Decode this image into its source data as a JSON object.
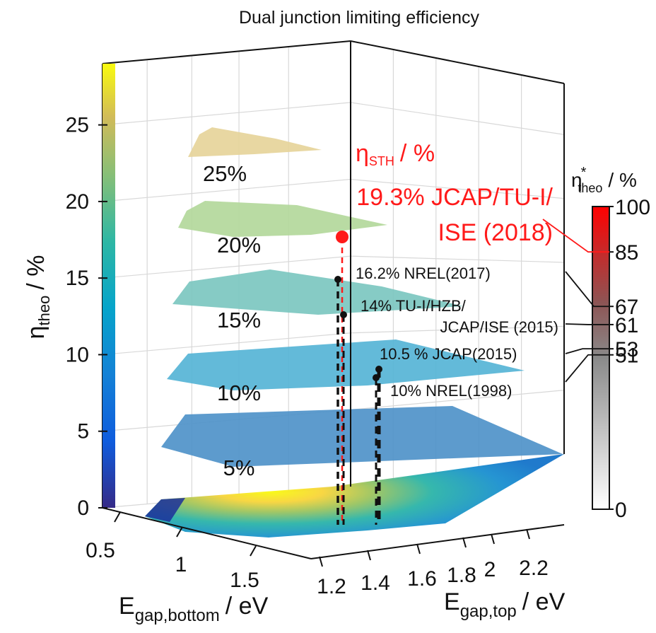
{
  "title": "Dual junction limiting efficiency",
  "chart_data": {
    "type": "surface3d",
    "title": "Dual junction limiting efficiency",
    "zlabel": "η",
    "zlabel_sub": "theo",
    "zlabel_unit": "/ %",
    "xlabel": "E",
    "xlabel_sub": "gap,bottom",
    "xlabel_unit": "/ eV",
    "ylabel": "E",
    "ylabel_sub": "gap,top",
    "ylabel_unit": "/ eV",
    "zlim": [
      0,
      29
    ],
    "z_ticks": [
      "0",
      "5",
      "10",
      "15",
      "20",
      "25"
    ],
    "x_ticks": [
      "0.5",
      "1",
      "1.5"
    ],
    "y_ticks": [
      "1.2",
      "1.4",
      "1.6",
      "1.8",
      "2",
      "2.2"
    ],
    "contour_levels": [
      {
        "label": "5%",
        "value": 5,
        "color": "#4f93c9"
      },
      {
        "label": "10%",
        "value": 10,
        "color": "#56b4d6"
      },
      {
        "label": "15%",
        "value": 15,
        "color": "#7cc7c0"
      },
      {
        "label": "20%",
        "value": 20,
        "color": "#b3d89b"
      },
      {
        "label": "25%",
        "value": 25,
        "color": "#e6d49a"
      }
    ],
    "annotation_title": "η",
    "annotation_title_sub": "STH",
    "annotation_title_unit": "/ %",
    "records": [
      {
        "label": "19.3% JCAP/TU-I/",
        "label2": "ISE (2018)",
        "value": 19.3,
        "color": "#ff1a1a",
        "highlight": true
      },
      {
        "label": "16.2% NREL(2017)",
        "value": 16.2,
        "color": "#111111"
      },
      {
        "label": "14% TU-I/HZB/",
        "label2": "JCAP/ISE (2015)",
        "value": 14,
        "color": "#111111"
      },
      {
        "label": "10.5 % JCAP(2015)",
        "value": 10.5,
        "color": "#111111"
      },
      {
        "label": "10% NREL(1998)",
        "value": 10,
        "color": "#111111"
      }
    ],
    "colorbar_left": {
      "colormap": "parula",
      "range": [
        0,
        29
      ]
    },
    "colorbar_right": {
      "title": "η",
      "title_sup": "*",
      "title_sub": "theo",
      "title_unit": "/ %",
      "ticks": [
        "100",
        "85",
        "67",
        "61",
        "53",
        "51",
        "0"
      ],
      "tick_values": [
        100,
        85,
        67,
        61,
        53,
        51,
        0
      ],
      "record_links": [
        85,
        67,
        61,
        53,
        51
      ]
    }
  }
}
